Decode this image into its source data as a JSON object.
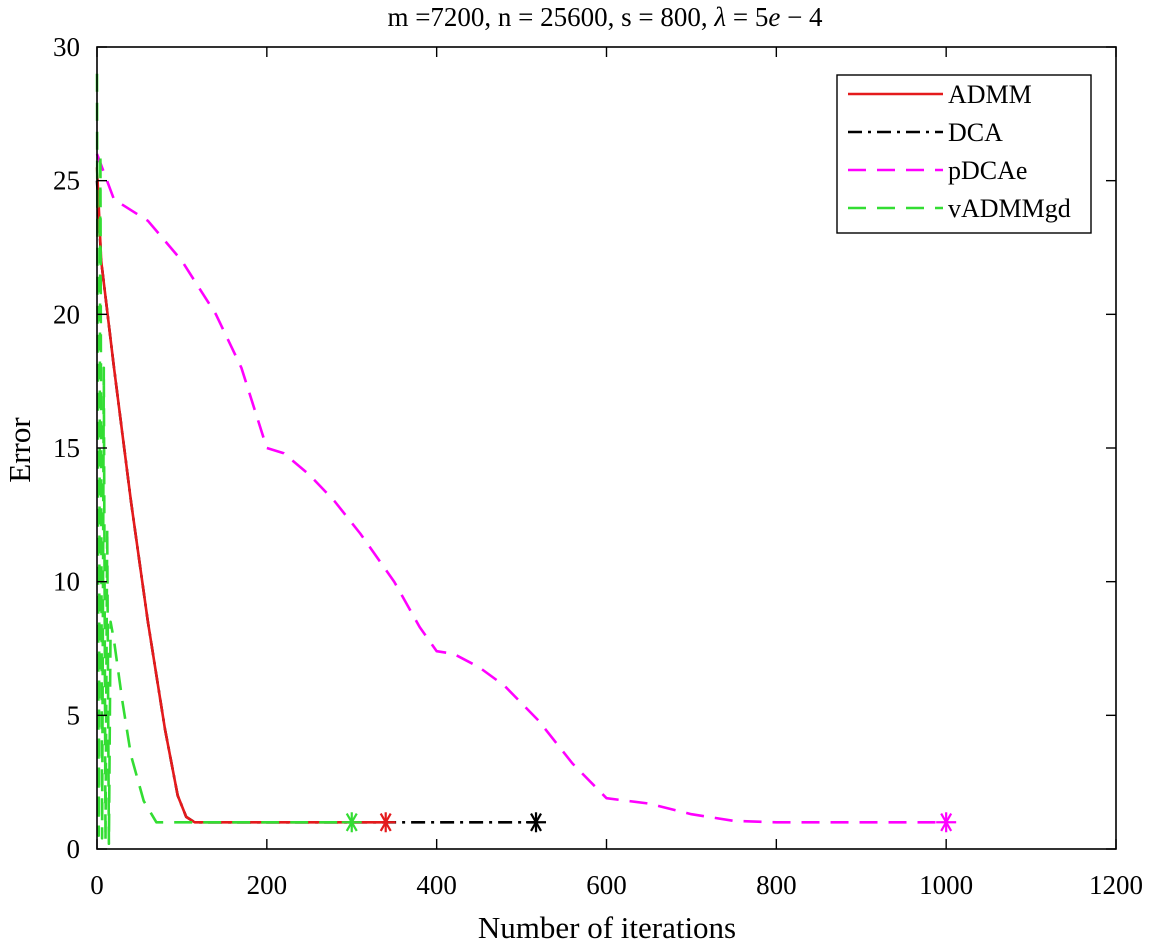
{
  "chart_data": {
    "type": "line",
    "title_parts": {
      "prefix": "m =7200, n = 25600, s = 800, ",
      "lambda": "λ",
      "eq": " = 5",
      "e": "e",
      "suffix": " − 4"
    },
    "xlabel": "Number of iterations",
    "ylabel": "Error",
    "xlim": [
      0,
      1200
    ],
    "ylim": [
      0,
      30
    ],
    "xticks": [
      0,
      200,
      400,
      600,
      800,
      1000,
      1200
    ],
    "yticks": [
      0,
      5,
      10,
      15,
      20,
      25,
      30
    ],
    "grid": false,
    "legend_position": "top-right",
    "series": [
      {
        "name": "ADMM",
        "color": "#e41a1c",
        "dash": "solid",
        "x": [
          0,
          5,
          20,
          40,
          60,
          80,
          95,
          105,
          115,
          150,
          200,
          300,
          340
        ],
        "y": [
          25.5,
          22,
          18,
          13,
          8.5,
          4.5,
          2,
          1.2,
          1,
          1,
          1,
          1,
          1
        ],
        "end_marker": {
          "x": 340,
          "y": 1
        }
      },
      {
        "name": "DCA",
        "color": "#000000",
        "dash": "dashdot",
        "x": [
          0,
          5,
          20,
          40,
          60,
          80,
          95,
          105,
          115,
          150,
          200,
          300,
          400,
          517
        ],
        "y": [
          25,
          22,
          18,
          13,
          8.5,
          4.5,
          2,
          1.2,
          1,
          1,
          1,
          1,
          1,
          1
        ],
        "end_marker": {
          "x": 517,
          "y": 1
        }
      },
      {
        "name": "pDCAe",
        "color": "#ff00ff",
        "dash": "dashed",
        "x": [
          0,
          20,
          60,
          100,
          140,
          170,
          200,
          220,
          250,
          280,
          310,
          350,
          380,
          400,
          420,
          450,
          480,
          520,
          560,
          600,
          650,
          700,
          750,
          800,
          900,
          1000
        ],
        "y": [
          26,
          24.3,
          23.5,
          22,
          20,
          18,
          15,
          14.8,
          14,
          13,
          11.8,
          10,
          8.3,
          7.4,
          7.3,
          6.8,
          6.1,
          4.8,
          3.2,
          1.9,
          1.7,
          1.3,
          1.05,
          1,
          1,
          1
        ],
        "end_marker": {
          "x": 1000,
          "y": 1
        }
      },
      {
        "name": "vADMMgd",
        "color": "#33dd33",
        "dash": "dashed",
        "x": [
          0,
          2,
          4,
          6,
          8,
          10,
          12,
          14,
          16,
          20,
          30,
          40,
          55,
          70,
          100,
          150,
          200,
          250,
          300
        ],
        "y": [
          29,
          0.5,
          26,
          0.4,
          18,
          0.3,
          12,
          0.2,
          8.5,
          7.8,
          5.5,
          3.5,
          1.8,
          1,
          1,
          1,
          1,
          1,
          1
        ],
        "end_marker": {
          "x": 300,
          "y": 1
        }
      }
    ]
  }
}
